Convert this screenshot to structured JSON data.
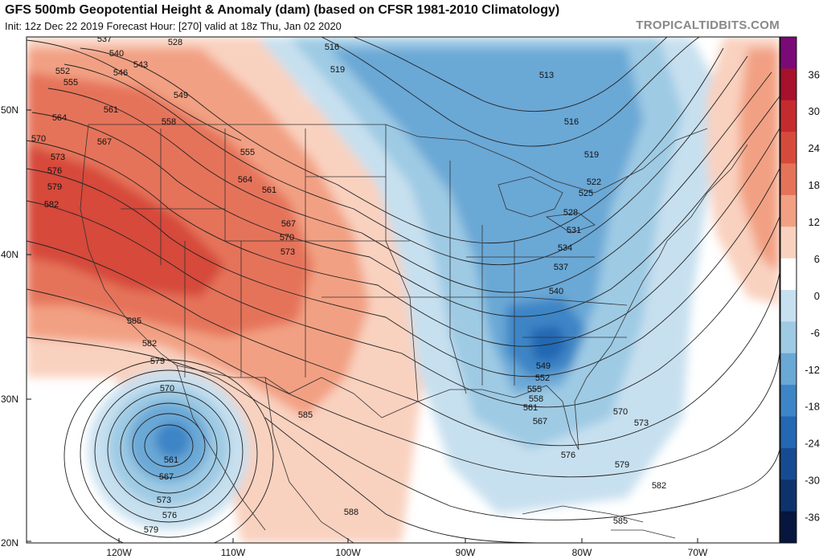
{
  "header": {
    "title": "GFS 500mb Geopotential Height & Anomaly (dam) (based on CFSR 1981-2010 Climatology)",
    "subtitle": "Init: 12z Dec 22 2019   Forecast Hour: [270]   valid at 18z Thu, Jan 02 2020",
    "credit": "TROPICALTIDBITS.COM"
  },
  "axes": {
    "lat_labels": [
      "50N",
      "40N",
      "30N",
      "20N"
    ],
    "lon_labels": [
      "120W",
      "110W",
      "100W",
      "90W",
      "80W",
      "70W"
    ]
  },
  "colorbar": {
    "labels": [
      "36",
      "30",
      "24",
      "18",
      "12",
      "6",
      "0",
      "-6",
      "-12",
      "-18",
      "-24",
      "-30",
      "-36"
    ],
    "colors": [
      "#7a0a77",
      "#a6112c",
      "#c42b2e",
      "#d64a3b",
      "#e5735a",
      "#f2a083",
      "#f9d1bf",
      "#ffffff",
      "#c7e0ef",
      "#9ecae4",
      "#6aa8d6",
      "#3d85c6",
      "#2467b2",
      "#174b91",
      "#0e326b",
      "#06163f"
    ]
  },
  "contour_labels": [
    "537",
    "528",
    "540",
    "543",
    "546",
    "552",
    "555",
    "549",
    "561",
    "558",
    "564",
    "567",
    "570",
    "573",
    "576",
    "579",
    "582",
    "555",
    "564",
    "561",
    "567",
    "570",
    "573",
    "516",
    "519",
    "513",
    "516",
    "519",
    "522",
    "525",
    "528",
    "531",
    "534",
    "537",
    "540",
    "549",
    "552",
    "555",
    "558",
    "561",
    "567",
    "570",
    "573",
    "576",
    "579",
    "582",
    "585",
    "582",
    "579",
    "570",
    "561",
    "567",
    "573",
    "576",
    "579",
    "585",
    "588",
    "585"
  ],
  "anomaly_features": [
    {
      "label": "ridge",
      "anomaly": 24
    },
    {
      "label": "trough-southeast",
      "anomaly": -24
    },
    {
      "label": "cutoff-low",
      "anomaly": -24
    },
    {
      "label": "atlantic-ridge",
      "anomaly": 12
    }
  ]
}
